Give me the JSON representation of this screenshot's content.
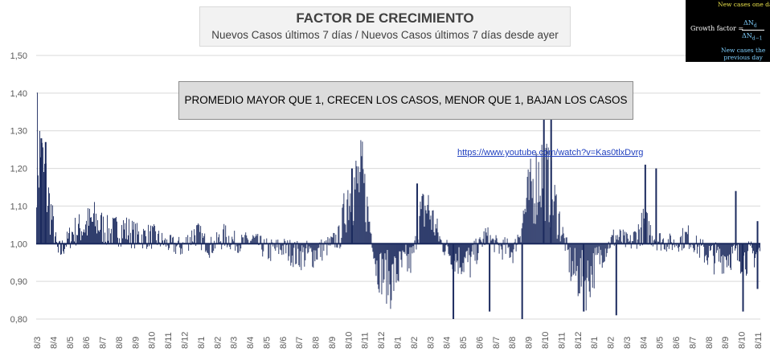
{
  "chart_data": {
    "type": "bar",
    "title": "FACTOR DE CRECIMIENTO",
    "subtitle": "Nuevos Casos últimos 7 días / Nuevos Casos últimos 7 días desde ayer",
    "baseline": 1.0,
    "ylim": [
      0.8,
      1.5
    ],
    "yticks": [
      "1,50",
      "1,40",
      "1,30",
      "1,20",
      "1,10",
      "1,00",
      "0,90",
      "0,80"
    ],
    "xticks": [
      "8/3",
      "8/4",
      "8/5",
      "8/6",
      "8/7",
      "8/8",
      "8/9",
      "8/10",
      "8/11",
      "8/12",
      "8/1",
      "8/2",
      "8/3",
      "8/4",
      "8/5",
      "8/6",
      "8/7",
      "8/8",
      "8/9",
      "8/10",
      "8/11",
      "8/12",
      "8/1",
      "8/2",
      "8/3",
      "8/4",
      "8/5",
      "8/6",
      "8/7",
      "8/8",
      "8/9",
      "8/10",
      "8/11",
      "8/12",
      "8/1",
      "8/2",
      "8/3",
      "8/4",
      "8/5",
      "8/6",
      "8/7",
      "8/8",
      "8/9",
      "8/10",
      "8/11"
    ],
    "profile": [
      [
        0,
        1.27
      ],
      [
        0.01,
        1.18
      ],
      [
        0.02,
        1.08
      ],
      [
        0.03,
        0.97
      ],
      [
        0.05,
        1.03
      ],
      [
        0.08,
        1.06
      ],
      [
        0.1,
        1.03
      ],
      [
        0.12,
        1.04
      ],
      [
        0.14,
        1.02
      ],
      [
        0.16,
        1.02
      ],
      [
        0.18,
        1.0
      ],
      [
        0.2,
        0.99
      ],
      [
        0.22,
        1.03
      ],
      [
        0.24,
        0.99
      ],
      [
        0.26,
        1.02
      ],
      [
        0.28,
        1.0
      ],
      [
        0.3,
        1.01
      ],
      [
        0.32,
        0.98
      ],
      [
        0.34,
        0.99
      ],
      [
        0.36,
        0.97
      ],
      [
        0.38,
        0.97
      ],
      [
        0.4,
        0.99
      ],
      [
        0.42,
        1.02
      ],
      [
        0.43,
        1.13
      ],
      [
        0.45,
        1.17
      ],
      [
        0.46,
        1.06
      ],
      [
        0.47,
        0.94
      ],
      [
        0.49,
        0.9
      ],
      [
        0.5,
        0.93
      ],
      [
        0.52,
        0.96
      ],
      [
        0.53,
        1.07
      ],
      [
        0.54,
        1.1
      ],
      [
        0.56,
        1.0
      ],
      [
        0.58,
        0.96
      ],
      [
        0.6,
        0.95
      ],
      [
        0.62,
        1.02
      ],
      [
        0.64,
        0.99
      ],
      [
        0.66,
        0.98
      ],
      [
        0.68,
        1.12
      ],
      [
        0.7,
        1.2
      ],
      [
        0.72,
        1.08
      ],
      [
        0.74,
        0.93
      ],
      [
        0.76,
        0.9
      ],
      [
        0.78,
        0.97
      ],
      [
        0.8,
        1.02
      ],
      [
        0.82,
        1.0
      ],
      [
        0.84,
        1.05
      ],
      [
        0.86,
        1.01
      ],
      [
        0.88,
        1.0
      ],
      [
        0.9,
        1.02
      ],
      [
        0.92,
        0.98
      ],
      [
        0.94,
        0.96
      ],
      [
        0.96,
        0.97
      ],
      [
        0.98,
        0.96
      ],
      [
        1,
        0.98
      ]
    ],
    "spikes": [
      [
        0.006,
        1.28
      ],
      [
        0.012,
        1.27
      ],
      [
        0.435,
        1.2
      ],
      [
        0.525,
        1.16
      ],
      [
        0.575,
        0.79
      ],
      [
        0.625,
        0.82
      ],
      [
        0.67,
        0.8
      ],
      [
        0.7,
        1.35
      ],
      [
        0.71,
        1.34
      ],
      [
        0.755,
        0.82
      ],
      [
        0.8,
        0.81
      ],
      [
        0.84,
        1.21
      ],
      [
        0.855,
        1.2
      ],
      [
        0.965,
        1.14
      ],
      [
        0.975,
        0.82
      ],
      [
        0.995,
        1.06
      ],
      [
        0.995,
        0.88
      ]
    ]
  },
  "note": "PROMEDIO MAYOR QUE 1, CRECEN LOS CASOS, MENOR QUE 1, BAJAN LOS CASOS",
  "link": "https://www.youtube.com/watch?v=Kas0tlxDvrg",
  "formula": {
    "top": "New cases one day",
    "left": "Growth factor =",
    "num": "ΔN",
    "num_sub": "d",
    "den": "ΔN",
    "den_sub": "d−1",
    "bottom_1": "New cases the",
    "bottom_2": "previous day"
  },
  "colors": {
    "bar": "#1b2a5e",
    "grid": "#d9d9d9",
    "axis_text": "#595959"
  }
}
